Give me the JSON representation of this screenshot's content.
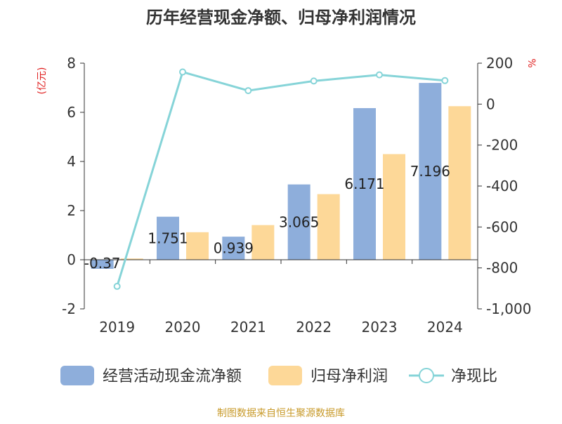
{
  "chart_data": {
    "type": "bar",
    "title": "历年经营现金净额、归母净利润情况",
    "left_axis_unit": "(亿元)",
    "right_axis_unit": "%",
    "categories": [
      "2019",
      "2020",
      "2021",
      "2022",
      "2023",
      "2024"
    ],
    "left_ylim": [
      -2,
      8
    ],
    "left_ticks": [
      "8",
      "6",
      "4",
      "2",
      "0",
      "-2"
    ],
    "right_ylim": [
      -1000,
      200
    ],
    "right_ticks": [
      "200",
      "0",
      "-200",
      "-400",
      "-600",
      "-800",
      "-1,000"
    ],
    "series": [
      {
        "name": "经营活动现金流净额",
        "kind": "bar",
        "axis": "left",
        "color": "#8eaedb",
        "values": [
          -0.37,
          1.751,
          0.939,
          3.065,
          6.171,
          7.196
        ],
        "labels": [
          "-0.37",
          "1.751",
          "0.939",
          "3.065",
          "6.171",
          "7.196"
        ]
      },
      {
        "name": "归母净利润",
        "kind": "bar",
        "axis": "left",
        "color": "#fdd898",
        "values": [
          0.05,
          1.12,
          1.41,
          2.67,
          4.3,
          6.25
        ]
      },
      {
        "name": "净现比",
        "kind": "line",
        "axis": "right",
        "color": "#86d4d8",
        "values": [
          -890,
          157,
          66,
          113,
          143,
          115
        ]
      }
    ],
    "legend_position": "bottom",
    "grid": false,
    "source": "制图数据来自恒生聚源数据库"
  }
}
